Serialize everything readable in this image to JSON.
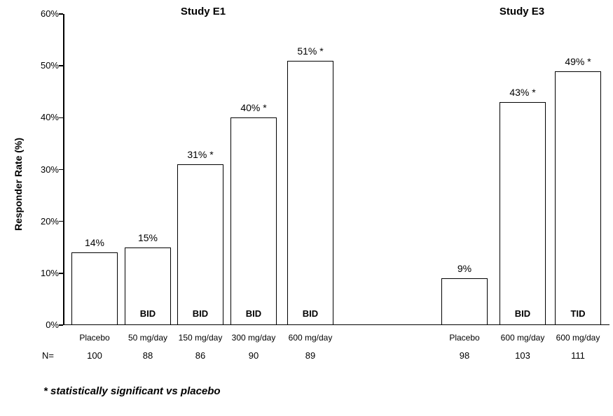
{
  "chart_data": {
    "type": "bar",
    "ylabel": "Responder Rate (%)",
    "ylim": [
      0,
      60
    ],
    "yticks": [
      "0%",
      "10%",
      "20%",
      "30%",
      "40%",
      "50%",
      "60%"
    ],
    "grid": false,
    "legend": "none",
    "n_label": "N=",
    "footnote": "* statistically significant vs placebo",
    "colors": {
      "bar_fill": "#ffffff",
      "bar_border": "#000000",
      "text": "#000000",
      "background": "#ffffff"
    },
    "groups": [
      {
        "name": "Study E1",
        "bars": [
          {
            "category": "Placebo",
            "value": 14,
            "label": "14%",
            "n": "100",
            "dose_label": ""
          },
          {
            "category": "50 mg/day",
            "value": 15,
            "label": "15%",
            "n": "88",
            "dose_label": "BID"
          },
          {
            "category": "150 mg/day",
            "value": 31,
            "label": "31% *",
            "n": "86",
            "dose_label": "BID"
          },
          {
            "category": "300 mg/day",
            "value": 40,
            "label": "40% *",
            "n": "90",
            "dose_label": "BID"
          },
          {
            "category": "600 mg/day",
            "value": 51,
            "label": "51% *",
            "n": "89",
            "dose_label": "BID"
          }
        ]
      },
      {
        "name": "Study E3",
        "bars": [
          {
            "category": "Placebo",
            "value": 9,
            "label": "9%",
            "n": "98",
            "dose_label": ""
          },
          {
            "category": "600 mg/day",
            "value": 43,
            "label": "43% *",
            "n": "103",
            "dose_label": "BID"
          },
          {
            "category": "600 mg/day",
            "value": 49,
            "label": "49% *",
            "n": "111",
            "dose_label": "TID"
          }
        ]
      }
    ]
  }
}
